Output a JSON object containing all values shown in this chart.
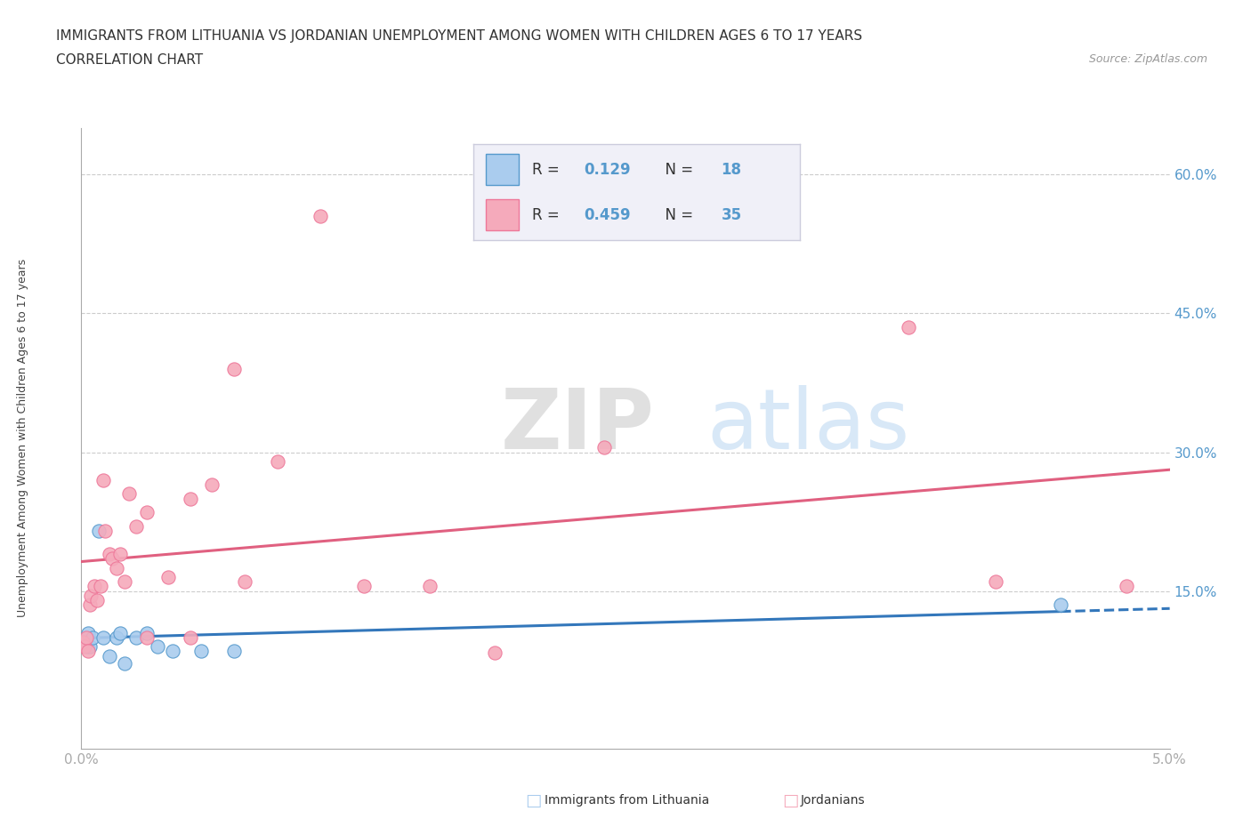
{
  "title_line1": "IMMIGRANTS FROM LITHUANIA VS JORDANIAN UNEMPLOYMENT AMONG WOMEN WITH CHILDREN AGES 6 TO 17 YEARS",
  "title_line2": "CORRELATION CHART",
  "source": "Source: ZipAtlas.com",
  "ylabel": "Unemployment Among Women with Children Ages 6 to 17 years",
  "xlim": [
    0.0,
    0.05
  ],
  "ylim": [
    -0.02,
    0.65
  ],
  "yticks": [
    0.15,
    0.3,
    0.45,
    0.6
  ],
  "ytick_labels": [
    "15.0%",
    "30.0%",
    "45.0%",
    "60.0%"
  ],
  "xticks": [
    0.0,
    0.00625,
    0.0125,
    0.01875,
    0.025,
    0.03125,
    0.0375,
    0.04375,
    0.05
  ],
  "xtick_labels": [
    "0.0%",
    "",
    "",
    "",
    "",
    "",
    "",
    "",
    "5.0%"
  ],
  "lithuania_scatter_x": [
    0.00015,
    0.00025,
    0.0003,
    0.0004,
    0.0005,
    0.0008,
    0.001,
    0.0013,
    0.0016,
    0.0018,
    0.002,
    0.0025,
    0.003,
    0.0035,
    0.0042,
    0.0055,
    0.007,
    0.045
  ],
  "lithuania_scatter_y": [
    0.095,
    0.09,
    0.105,
    0.09,
    0.1,
    0.215,
    0.1,
    0.08,
    0.1,
    0.105,
    0.072,
    0.1,
    0.105,
    0.09,
    0.085,
    0.085,
    0.085,
    0.135
  ],
  "jordan_scatter_x": [
    8e-05,
    0.00015,
    0.00022,
    0.0003,
    0.0004,
    0.00045,
    0.0006,
    0.0007,
    0.0009,
    0.001,
    0.0011,
    0.0013,
    0.0014,
    0.0016,
    0.0018,
    0.002,
    0.0022,
    0.0025,
    0.003,
    0.003,
    0.004,
    0.005,
    0.005,
    0.006,
    0.007,
    0.0075,
    0.009,
    0.011,
    0.013,
    0.016,
    0.019,
    0.024,
    0.038,
    0.042,
    0.048
  ],
  "jordan_scatter_y": [
    0.095,
    0.09,
    0.1,
    0.085,
    0.135,
    0.145,
    0.155,
    0.14,
    0.155,
    0.27,
    0.215,
    0.19,
    0.185,
    0.175,
    0.19,
    0.16,
    0.255,
    0.22,
    0.235,
    0.1,
    0.165,
    0.25,
    0.1,
    0.265,
    0.39,
    0.16,
    0.29,
    0.555,
    0.155,
    0.155,
    0.083,
    0.305,
    0.435,
    0.16,
    0.155
  ],
  "lithuania_color": "#aaccee",
  "jordan_color": "#f5aabb",
  "lithuania_edge_color": "#5599cc",
  "jordan_edge_color": "#ee7799",
  "lithuania_line_color": "#3377bb",
  "jordan_line_color": "#e06080",
  "grid_color": "#cccccc",
  "axis_color": "#aaaaaa",
  "label_color": "#5599cc",
  "legend_box_color": "#f0f0f8",
  "legend_border_color": "#ccccdd",
  "R_lithuania": 0.129,
  "N_lithuania": 18,
  "R_jordan": 0.459,
  "N_jordan": 35,
  "watermark_ZIP": "ZIP",
  "watermark_atlas": "atlas",
  "background_color": "#ffffff",
  "title_fontsize": 11,
  "axis_label_fontsize": 9,
  "tick_fontsize": 11,
  "legend_fontsize": 12
}
